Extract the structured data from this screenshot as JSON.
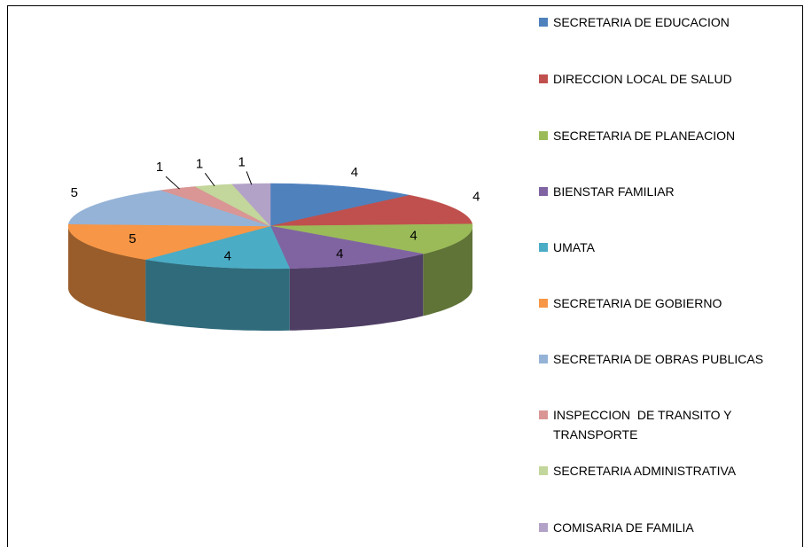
{
  "chart_data": {
    "type": "pie3d",
    "categories": [
      "SECRETARIA DE EDUCACION",
      "DIRECCION LOCAL DE SALUD",
      "SECRETARIA DE PLANEACION",
      "BIENSTAR FAMILIAR",
      "UMATA",
      "SECRETARIA DE GOBIERNO",
      "SECRETARIA DE OBRAS PUBLICAS",
      "INSPECCION  DE TRANSITO Y TRANSPORTE",
      "SECRETARIA ADMINISTRATIVA",
      "COMISARIA DE FAMILIA"
    ],
    "values": [
      4,
      4,
      4,
      4,
      4,
      5,
      5,
      1,
      1,
      1
    ],
    "colors": [
      "#4f81bd",
      "#c0504d",
      "#9bbb59",
      "#8064a2",
      "#4bacc6",
      "#f79646",
      "#95b3d7",
      "#d99694",
      "#c3d69b",
      "#b3a2c7"
    ],
    "legend": "right"
  }
}
